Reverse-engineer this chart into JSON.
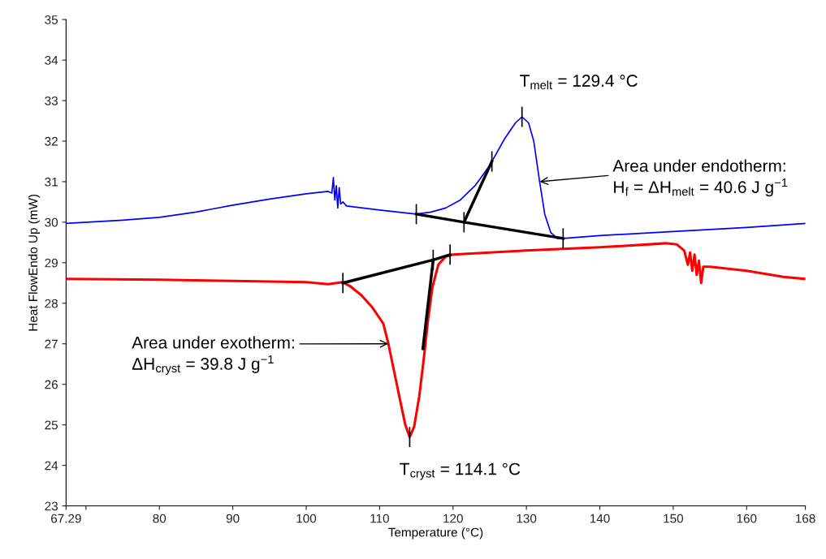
{
  "chart_data": {
    "type": "line",
    "xlabel": "Temperature (°C)",
    "ylabel": "Heat FlowEndo Up (mW)",
    "xlim": [
      67.29,
      168
    ],
    "xticks": [
      67.29,
      {
        "value": 70,
        "label": null
      },
      80,
      90,
      100,
      110,
      120,
      130,
      140,
      150,
      160,
      168
    ],
    "ylim": [
      23,
      35
    ],
    "yticks": [
      23,
      24,
      25,
      26,
      27,
      28,
      29,
      30,
      31,
      32,
      33,
      34,
      35
    ],
    "grid": false,
    "legend": false,
    "series": [
      {
        "color": "#0000ff",
        "x": [
          67.29,
          75,
          80,
          85,
          90,
          95,
          100,
          103,
          103.5,
          103.7,
          103.9,
          104.1,
          104.3,
          104.5,
          104.7,
          105,
          105.5,
          110,
          115,
          117,
          119,
          121,
          123,
          125,
          127,
          128.5,
          129.4,
          130.3,
          131,
          131.8,
          132.5,
          133.3,
          134.2,
          135,
          140,
          150,
          160,
          168
        ],
        "values": [
          29.97,
          30.05,
          30.12,
          30.25,
          30.42,
          30.57,
          30.7,
          30.76,
          30.72,
          31.1,
          30.55,
          30.9,
          30.35,
          30.85,
          30.45,
          30.5,
          30.4,
          30.3,
          30.2,
          30.25,
          30.35,
          30.55,
          30.9,
          31.4,
          32.05,
          32.45,
          32.6,
          32.45,
          32.0,
          31.0,
          30.2,
          29.75,
          29.6,
          29.6,
          29.67,
          29.77,
          29.87,
          29.97
        ],
        "errors": [
          null,
          null,
          null,
          null,
          null,
          null,
          null,
          null,
          null,
          null,
          null,
          null,
          null,
          null,
          null,
          null,
          null,
          null,
          null,
          null,
          null,
          null,
          null,
          null,
          null,
          null,
          0.25,
          null,
          null,
          null,
          null,
          null,
          null,
          null,
          null,
          null,
          null,
          null
        ]
      },
      {
        "color": "#ff0000",
        "x": [
          67.29,
          80,
          90,
          100,
          103,
          105,
          106,
          107.5,
          109,
          110.5,
          111.2,
          112,
          112.8,
          113.5,
          114.1,
          114.7,
          115.4,
          116,
          116.6,
          117.2,
          118,
          119,
          120,
          130,
          140,
          149,
          150.5,
          151.5,
          152,
          152.3,
          152.6,
          152.9,
          153.2,
          153.5,
          153.8,
          154.1,
          155,
          160,
          165,
          168
        ],
        "values": [
          28.6,
          28.58,
          28.55,
          28.52,
          28.47,
          28.52,
          28.42,
          28.2,
          27.9,
          27.5,
          27.0,
          26.3,
          25.6,
          25.0,
          24.7,
          24.95,
          25.7,
          26.6,
          27.6,
          28.4,
          28.95,
          29.15,
          29.2,
          29.3,
          29.38,
          29.48,
          29.45,
          29.3,
          28.95,
          29.25,
          28.8,
          29.2,
          28.7,
          29.05,
          28.5,
          28.9,
          28.9,
          28.8,
          28.65,
          28.6
        ],
        "errors": [
          null,
          null,
          null,
          null,
          null,
          null,
          null,
          null,
          null,
          null,
          null,
          null,
          null,
          null,
          0.25,
          null,
          null,
          null,
          null,
          null,
          null,
          null,
          null,
          null,
          null,
          null,
          null,
          null,
          null,
          null,
          null,
          null,
          null,
          null,
          null,
          null,
          null,
          null,
          null,
          null
        ]
      },
      {
        "color": "#000000",
        "x": [
          115,
          121.5,
          135
        ],
        "values": [
          30.2,
          30.0,
          29.6
        ],
        "errors": [
          0.25,
          0.25,
          0.25
        ]
      },
      {
        "color": "#000000",
        "x": [
          121.5,
          125.3
        ],
        "values": [
          30.0,
          31.5
        ],
        "errors": [
          null,
          0.25
        ]
      },
      {
        "color": "#000000",
        "x": [
          105,
          117.3,
          119.6
        ],
        "values": [
          28.5,
          29.07,
          29.2
        ],
        "errors": [
          0.25,
          0.25,
          0.25
        ]
      },
      {
        "color": "#000000",
        "x": [
          117.3,
          115.9
        ],
        "values": [
          29.07,
          26.88
        ],
        "errors": [
          null,
          null
        ]
      }
    ],
    "annotations": [
      {
        "text": "T$_{melt}$ = 129.4 °C",
        "x": 129.4,
        "y": 32.6
      },
      {
        "text": "Area under endotherm:",
        "x": 131.8,
        "y": 31.0
      },
      "H$_{f}$ = ΔH$_{melt}$ = 40.6 J g$^{−1}$",
      {
        "text": "Area under exotherm:",
        "x": 111.2,
        "y": 27.0
      },
      "ΔH$_{cryst}$ = 39.8 J g$^{−1}$",
      {
        "text": "T$_{cryst}$ = 114.1 °C",
        "x": 114.1,
        "y": 24.7
      }
    ]
  }
}
